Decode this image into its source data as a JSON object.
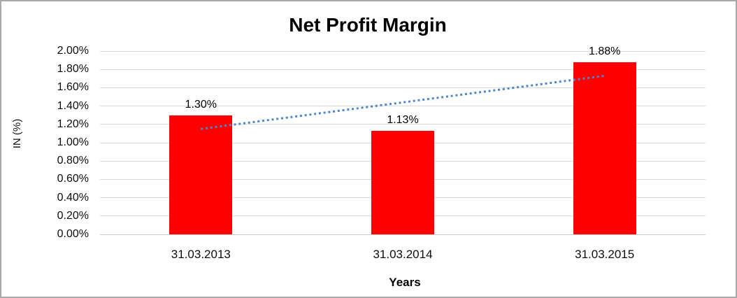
{
  "chart_data": {
    "type": "bar",
    "title": "Net Profit Margin",
    "xlabel": "Years",
    "ylabel": "IN (%)",
    "categories": [
      "31.03.2013",
      "31.03.2014",
      "31.03.2015"
    ],
    "values": [
      1.3,
      1.13,
      1.88
    ],
    "data_labels": [
      "1.30%",
      "1.13%",
      "1.88%"
    ],
    "ylim": [
      0,
      2
    ],
    "ytick_step": 0.2,
    "ytick_labels": [
      "0.00%",
      "0.20%",
      "0.40%",
      "0.60%",
      "0.80%",
      "1.00%",
      "1.20%",
      "1.40%",
      "1.60%",
      "1.80%",
      "2.00%"
    ],
    "grid": "horizontal-on",
    "legend": "none",
    "bar_color": "#ff0000",
    "gridline_color": "#d9d9d9",
    "trendline": {
      "style": "dotted",
      "color": "#4e86c8",
      "start_value": 1.15,
      "end_value": 1.73
    }
  }
}
